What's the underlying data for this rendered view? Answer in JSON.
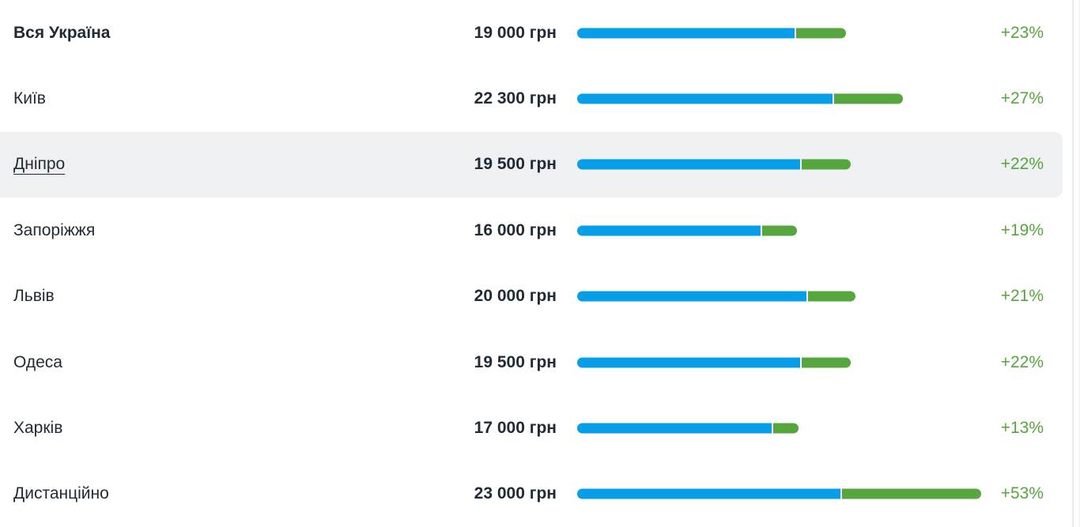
{
  "currency_unit": "грн",
  "colors": {
    "base_bar": "#079ee9",
    "growth_bar": "#55a63c",
    "highlight_row": "#eef0f2"
  },
  "rows": [
    {
      "city": "Вся Україна",
      "salary": "19 000 грн",
      "growth": "+23%",
      "salary_value": 19000,
      "growth_pct": 23
    },
    {
      "city": "Київ",
      "salary": "22 300 грн",
      "growth": "+27%",
      "salary_value": 22300,
      "growth_pct": 27
    },
    {
      "city": "Дніпро",
      "salary": "19 500 грн",
      "growth": "+22%",
      "salary_value": 19500,
      "growth_pct": 22
    },
    {
      "city": "Запоріжжя",
      "salary": "16 000 грн",
      "growth": "+19%",
      "salary_value": 16000,
      "growth_pct": 19
    },
    {
      "city": "Львів",
      "salary": "20 000 грн",
      "growth": "+21%",
      "salary_value": 20000,
      "growth_pct": 21
    },
    {
      "city": "Одеса",
      "salary": "19 500 грн",
      "growth": "+22%",
      "salary_value": 19500,
      "growth_pct": 22
    },
    {
      "city": "Харків",
      "salary": "17 000 грн",
      "growth": "+13%",
      "salary_value": 17000,
      "growth_pct": 13
    },
    {
      "city": "Дистанційно",
      "salary": "23 000 грн",
      "growth": "+53%",
      "salary_value": 23000,
      "growth_pct": 53
    }
  ]
}
